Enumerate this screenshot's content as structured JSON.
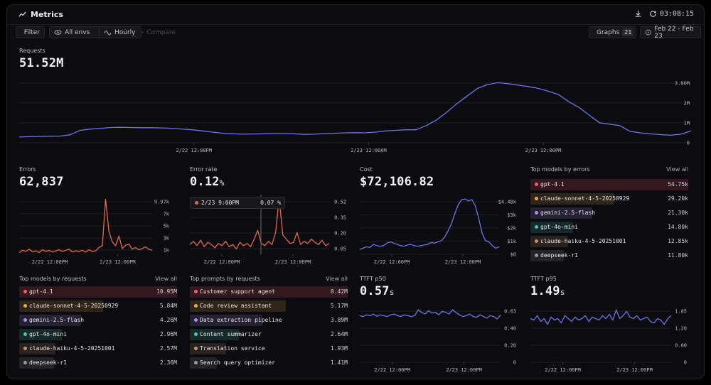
{
  "header": {
    "title": "Metrics",
    "time": "03:08:15"
  },
  "toolbar": {
    "filter": "Filter",
    "envs": "All envs",
    "interval": "Hourly",
    "compare": "Compare",
    "graphs": "Graphs",
    "graphs_count": "21",
    "date_range": "Feb 22 - Feb 23"
  },
  "colors": {
    "blue": "#6b74e6",
    "orange": "#e5694a",
    "red": "#ff5c6e",
    "yellow": "#e8b04a",
    "purple": "#b48cf0",
    "teal": "#4fc4b4",
    "brown": "#c8946a",
    "gray": "#9a9aa6"
  },
  "requests": {
    "title": "Requests",
    "value": "51.52M",
    "chart_data": {
      "type": "line",
      "xticks": [
        "2/22 12:00PM",
        "2/23 12:00AM",
        "2/23 12:00PM"
      ],
      "yticks": [
        "3.00M",
        "2M",
        "1M",
        "0"
      ],
      "ylim": [
        0,
        3500000
      ],
      "values": [
        300000,
        320000,
        330000,
        340000,
        350000,
        420000,
        650000,
        720000,
        760000,
        800000,
        810000,
        800000,
        790000,
        790000,
        780000,
        760000,
        720000,
        680000,
        620000,
        560000,
        500000,
        470000,
        450000,
        460000,
        470000,
        480000,
        480000,
        470000,
        440000,
        450000,
        480000,
        500000,
        520000,
        530000,
        520000,
        560000,
        620000,
        650000,
        680000,
        680000,
        900000,
        1200000,
        1600000,
        2050000,
        2450000,
        2850000,
        3050000,
        3150000,
        3100000,
        3020000,
        2950000,
        2850000,
        2700000,
        2520000,
        2150000,
        1850000,
        1450000,
        1050000,
        970000,
        900000,
        600000,
        520000,
        470000,
        430000,
        400000,
        450000,
        620000
      ]
    }
  },
  "errors": {
    "title": "Errors",
    "value": "62,837",
    "chart_data": {
      "type": "line",
      "xticks": [
        "2/22 12:00PM",
        "2/23 12:00PM"
      ],
      "yticks": [
        "9.97k",
        "7k",
        "5k",
        "3k",
        "1k"
      ],
      "ylim": [
        0,
        10500
      ],
      "values": [
        300,
        700,
        500,
        900,
        400,
        600,
        300,
        800,
        500,
        700,
        400,
        600,
        800,
        500,
        700,
        900,
        400,
        600,
        500,
        700,
        400,
        800,
        500,
        600,
        1200,
        1500,
        9700,
        4000,
        2200,
        1500,
        3200,
        1000,
        1600,
        1800,
        900,
        1200,
        800,
        1000,
        1300,
        900,
        700
      ]
    }
  },
  "error_rate": {
    "title": "Error rate",
    "value": "0.12",
    "unit": "%",
    "tooltip": {
      "time": "2/23 9:00PM",
      "value": "0.07 %"
    },
    "chart_data": {
      "type": "line",
      "xticks": [
        "2/22 12:00PM",
        "2/23 12:00PM"
      ],
      "yticks": [
        "0.52",
        "0.35",
        "0.20",
        "0.05"
      ],
      "ylim": [
        0,
        0.55
      ],
      "values": [
        0.09,
        0.12,
        0.08,
        0.13,
        0.07,
        0.11,
        0.09,
        0.06,
        0.1,
        0.08,
        0.12,
        0.07,
        0.09,
        0.05,
        0.11,
        0.08,
        0.1,
        0.07,
        0.14,
        0.22,
        0.1,
        0.08,
        0.12,
        0.09,
        0.2,
        0.52,
        0.18,
        0.14,
        0.1,
        0.11,
        0.2,
        0.09,
        0.12,
        0.1,
        0.14,
        0.11,
        0.09,
        0.13,
        0.08,
        0.1
      ]
    }
  },
  "cost": {
    "title": "Cost",
    "value": "$72,106.82",
    "chart_data": {
      "type": "line",
      "xticks": [
        "2/22 12:00PM",
        "2/23 12:00PM"
      ],
      "yticks": [
        "$4.48k",
        "$3k",
        "$2k",
        "$1k",
        "$0"
      ],
      "ylim": [
        0,
        4800
      ],
      "values": [
        400,
        500,
        600,
        550,
        800,
        700,
        650,
        700,
        900,
        1000,
        900,
        800,
        700,
        650,
        750,
        800,
        700,
        650,
        700,
        750,
        800,
        950,
        900,
        1000,
        1100,
        1400,
        1900,
        2500,
        3300,
        4000,
        4400,
        4450,
        4300,
        4400,
        3900,
        2900,
        1700,
        1100,
        1000,
        700,
        500,
        600
      ]
    }
  },
  "top_models_errors": {
    "title": "Top models by errors",
    "view_all": "View all",
    "items": [
      {
        "name": "gpt-4.1",
        "value": "54.75k",
        "share": 1.0,
        "color": "#ff5c6e"
      },
      {
        "name": "claude-sonnet-4-5-20250929",
        "value": "29.20k",
        "share": 0.53,
        "color": "#e8b04a"
      },
      {
        "name": "gemini-2.5-flash",
        "value": "21.30k",
        "share": 0.39,
        "color": "#b48cf0"
      },
      {
        "name": "gpt-4o-mini",
        "value": "14.80k",
        "share": 0.27,
        "color": "#4fc4b4"
      },
      {
        "name": "claude-haiku-4-5-20251001",
        "value": "12.85k",
        "share": 0.24,
        "color": "#c8946a"
      },
      {
        "name": "deepseek-r1",
        "value": "11.80k",
        "share": 0.21,
        "color": "#9a9aa6"
      }
    ]
  },
  "top_models_requests": {
    "title": "Top models by requests",
    "view_all": "View all",
    "items": [
      {
        "name": "gpt-4.1",
        "value": "10.95M",
        "share": 1.0,
        "color": "#ff5c6e"
      },
      {
        "name": "claude-sonnet-4-5-20250929",
        "value": "5.84M",
        "share": 0.53,
        "color": "#e8b04a"
      },
      {
        "name": "gemini-2.5-flash",
        "value": "4.26M",
        "share": 0.39,
        "color": "#b48cf0"
      },
      {
        "name": "gpt-4o-mini",
        "value": "2.96M",
        "share": 0.27,
        "color": "#4fc4b4"
      },
      {
        "name": "claude-haiku-4-5-20251001",
        "value": "2.57M",
        "share": 0.23,
        "color": "#c8946a"
      },
      {
        "name": "deepseek-r1",
        "value": "2.36M",
        "share": 0.22,
        "color": "#9a9aa6"
      }
    ]
  },
  "top_prompts_requests": {
    "title": "Top prompts by requests",
    "view_all": "View all",
    "items": [
      {
        "name": "Customer support agent",
        "value": "8.42M",
        "share": 1.0,
        "color": "#ff5c6e"
      },
      {
        "name": "Code review assistant",
        "value": "5.17M",
        "share": 0.61,
        "color": "#e8b04a"
      },
      {
        "name": "Data extraction pipeline",
        "value": "3.89M",
        "share": 0.46,
        "color": "#b48cf0"
      },
      {
        "name": "Content summarizer",
        "value": "2.64M",
        "share": 0.31,
        "color": "#4fc4b4"
      },
      {
        "name": "Translation service",
        "value": "1.93M",
        "share": 0.23,
        "color": "#c8946a"
      },
      {
        "name": "Search query optimizer",
        "value": "1.41M",
        "share": 0.17,
        "color": "#9a9aa6"
      }
    ]
  },
  "ttft_p50": {
    "title": "TTFT p50",
    "value": "0.57",
    "unit": "s",
    "chart_data": {
      "type": "line",
      "xticks": [
        "2/22 12:00PM",
        "2/23 12:00PM"
      ],
      "yticks": [
        "0.63",
        "0.40",
        "0.20",
        "0"
      ],
      "ylim": [
        0,
        0.7
      ],
      "values": [
        0.56,
        0.55,
        0.57,
        0.56,
        0.58,
        0.55,
        0.57,
        0.56,
        0.55,
        0.57,
        0.58,
        0.56,
        0.55,
        0.57,
        0.56,
        0.55,
        0.56,
        0.63,
        0.6,
        0.58,
        0.62,
        0.59,
        0.6,
        0.57,
        0.61,
        0.6,
        0.58,
        0.63,
        0.6,
        0.57,
        0.55,
        0.56,
        0.58,
        0.55,
        0.54,
        0.57,
        0.55,
        0.53,
        0.56,
        0.55,
        0.52,
        0.57
      ]
    }
  },
  "ttft_p95": {
    "title": "TTFT p95",
    "value": "1.49",
    "unit": "s",
    "chart_data": {
      "type": "line",
      "xticks": [
        "2/22 12:00PM",
        "2/23 12:00PM"
      ],
      "yticks": [
        "1.85",
        "1.20",
        "0.60",
        "0"
      ],
      "ylim": [
        0,
        2.0
      ],
      "values": [
        1.5,
        1.45,
        1.6,
        1.4,
        1.5,
        1.3,
        1.55,
        1.45,
        1.5,
        1.35,
        1.6,
        1.5,
        1.4,
        1.55,
        1.45,
        1.5,
        1.6,
        1.4,
        1.55,
        1.5,
        1.45,
        1.6,
        1.5,
        1.65,
        1.45,
        1.8,
        1.5,
        1.6,
        1.75,
        1.55,
        1.5,
        1.6,
        1.45,
        1.5,
        1.55,
        1.4,
        1.35,
        1.5,
        1.45,
        1.3,
        1.5,
        1.6
      ]
    }
  }
}
